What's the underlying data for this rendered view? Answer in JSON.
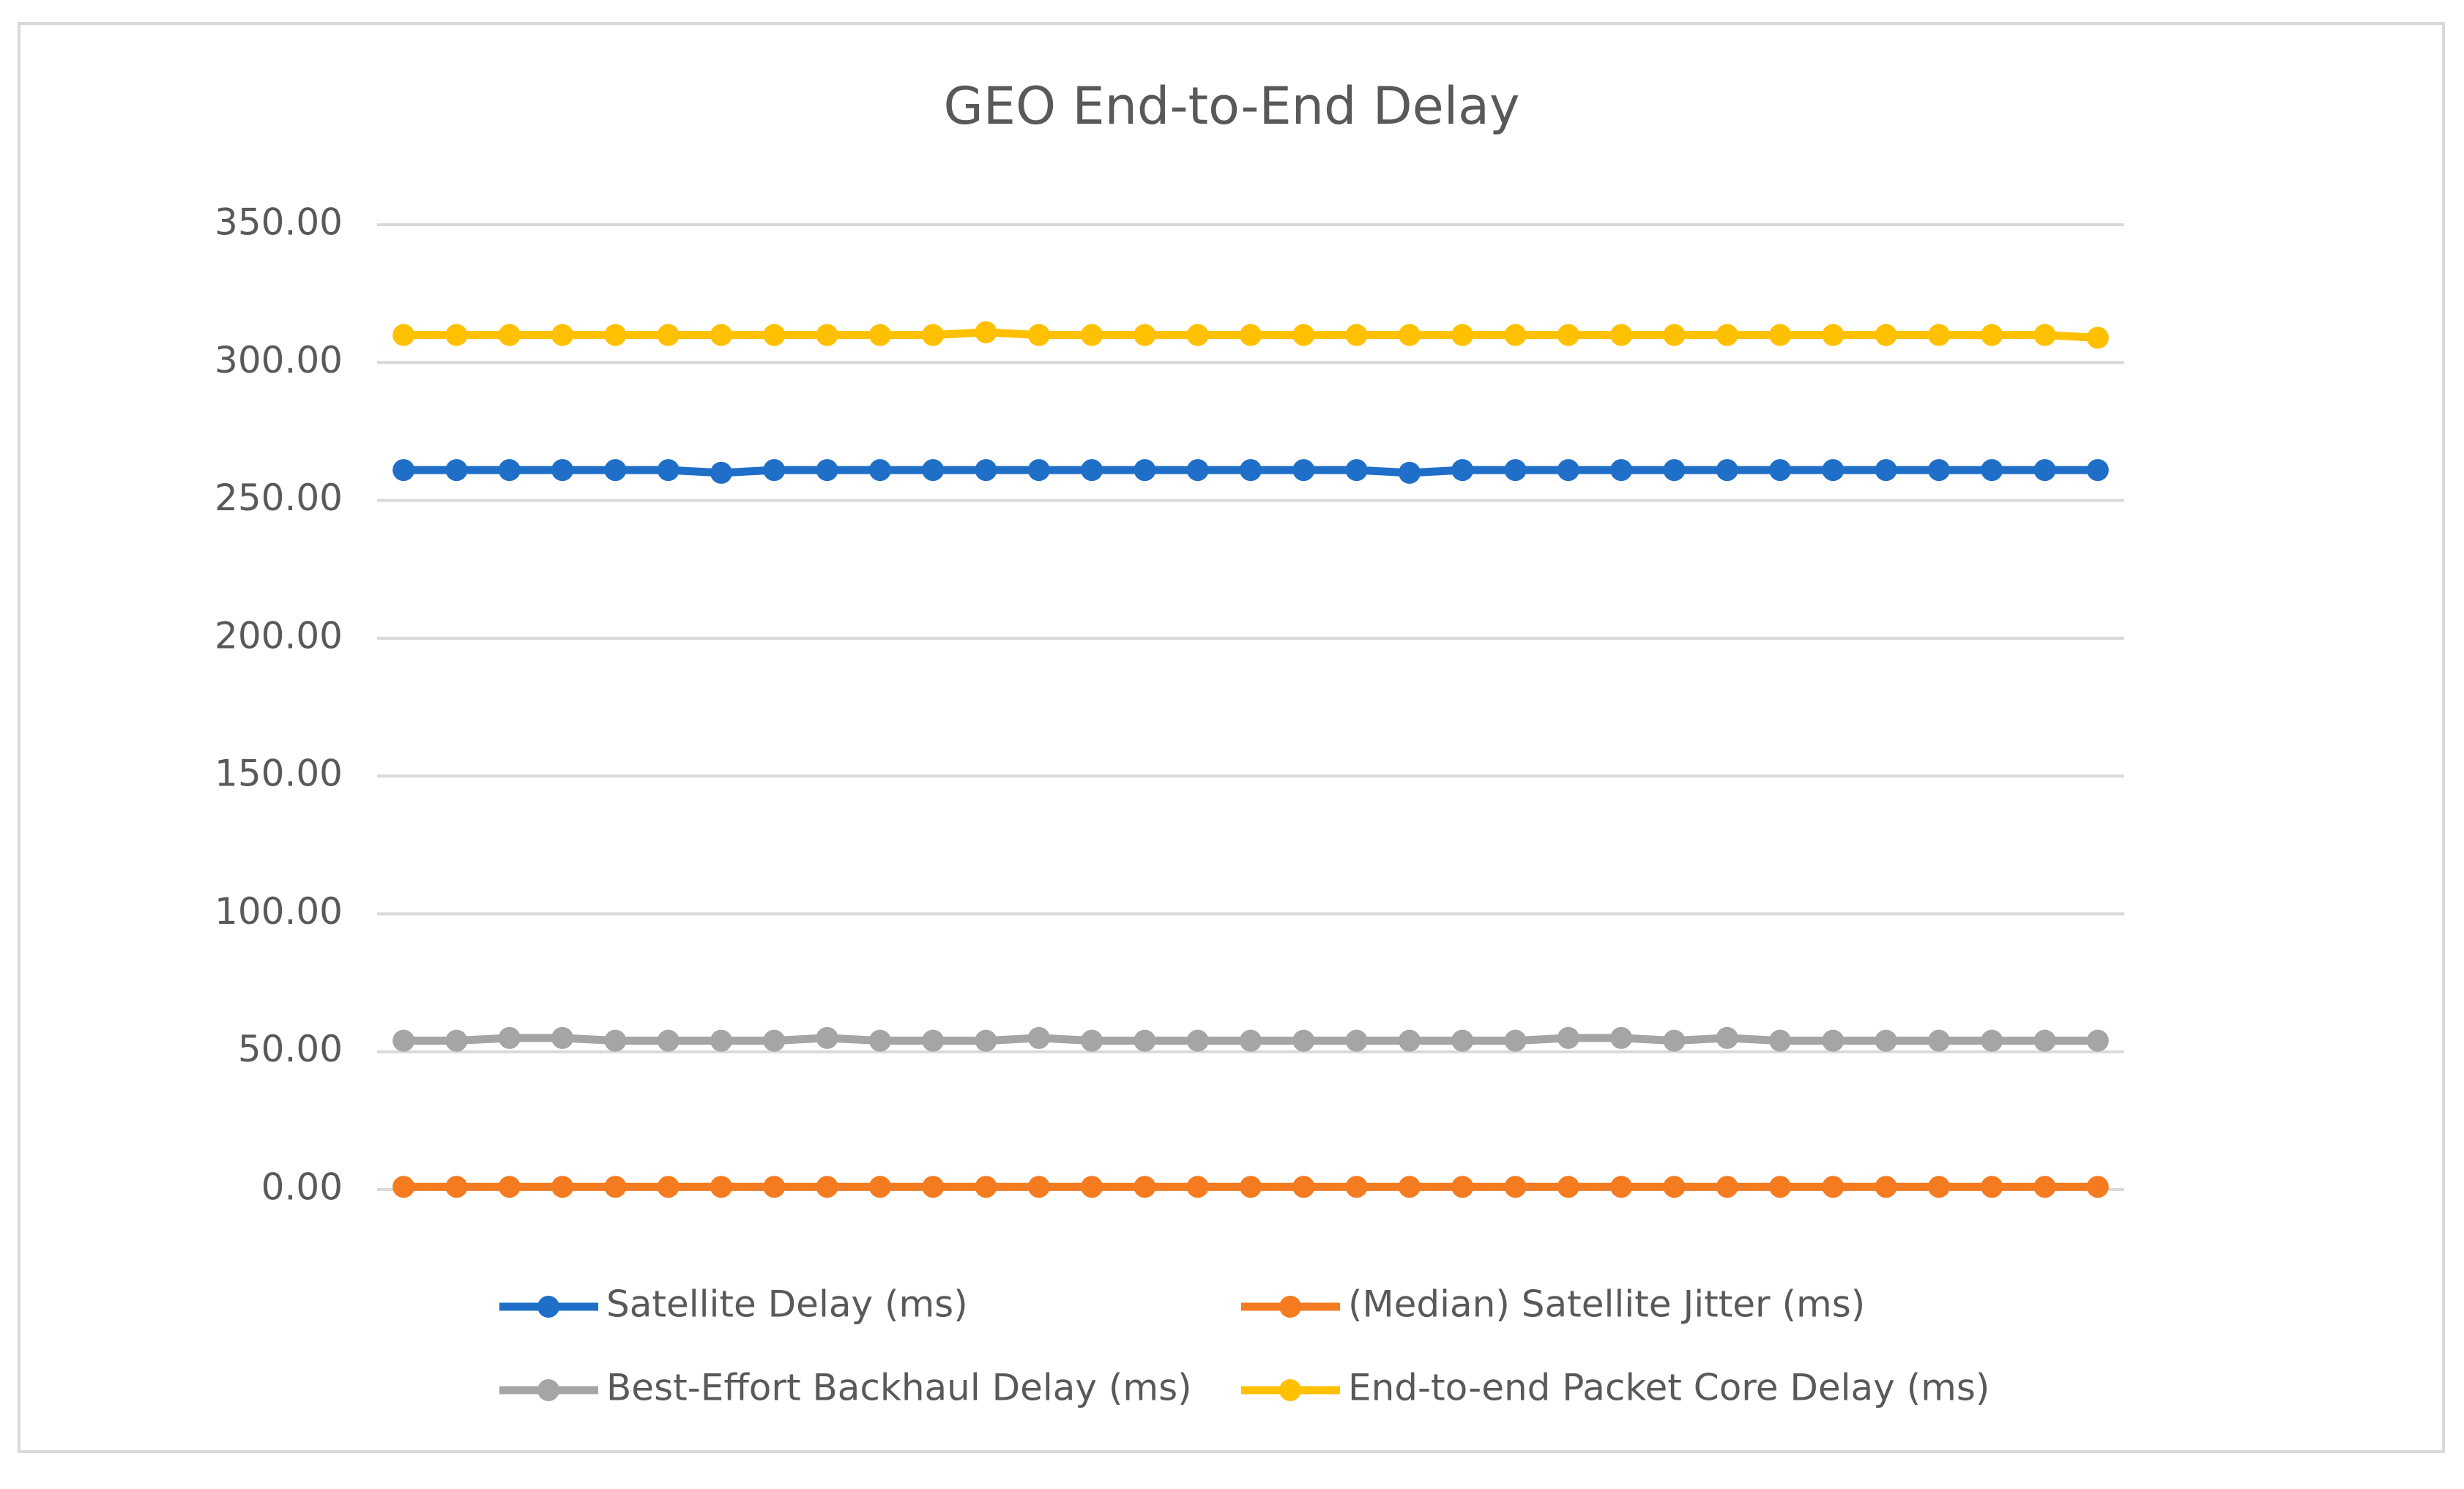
{
  "chart_data": {
    "type": "line",
    "title": "GEO End-to-End Delay",
    "ylim": [
      0,
      350
    ],
    "yticks": [
      {
        "value": 0,
        "label": "0.00"
      },
      {
        "value": 50,
        "label": "50.00"
      },
      {
        "value": 100,
        "label": "100.00"
      },
      {
        "value": 150,
        "label": "150.00"
      },
      {
        "value": 200,
        "label": "200.00"
      },
      {
        "value": 250,
        "label": "250.00"
      },
      {
        "value": 300,
        "label": "300.00"
      },
      {
        "value": 350,
        "label": "350.00"
      }
    ],
    "grid": true,
    "series": [
      {
        "name": "Satellite Delay (ms)",
        "color": "#1f6fc8",
        "values": [
          261,
          261,
          261,
          261,
          261,
          261,
          260,
          261,
          261,
          261,
          261,
          261,
          261,
          261,
          261,
          261,
          261,
          261,
          261,
          260,
          261,
          261,
          261,
          261,
          261,
          261,
          261,
          261,
          261,
          261,
          261,
          261,
          261
        ]
      },
      {
        "name": "(Median) Satellite Jitter (ms)",
        "color": "#f47b20",
        "values": [
          1,
          1,
          1,
          1,
          1,
          1,
          1,
          1,
          1,
          1,
          1,
          1,
          1,
          1,
          1,
          1,
          1,
          1,
          1,
          1,
          1,
          1,
          1,
          1,
          1,
          1,
          1,
          1,
          1,
          1,
          1,
          1,
          1
        ]
      },
      {
        "name": "Best-Effort Backhaul Delay (ms)",
        "color": "#a5a5a5",
        "values": [
          54,
          54,
          55,
          55,
          54,
          54,
          54,
          54,
          55,
          54,
          54,
          54,
          55,
          54,
          54,
          54,
          54,
          54,
          54,
          54,
          54,
          54,
          55,
          55,
          54,
          55,
          54,
          54,
          54,
          54,
          54,
          54,
          54
        ]
      },
      {
        "name": "End-to-end Packet Core Delay (ms)",
        "color": "#ffc000",
        "values": [
          310,
          310,
          310,
          310,
          310,
          310,
          310,
          310,
          310,
          310,
          310,
          311,
          310,
          310,
          310,
          310,
          310,
          310,
          310,
          310,
          310,
          310,
          310,
          310,
          310,
          310,
          310,
          310,
          310,
          310,
          310,
          310,
          309
        ]
      }
    ]
  }
}
